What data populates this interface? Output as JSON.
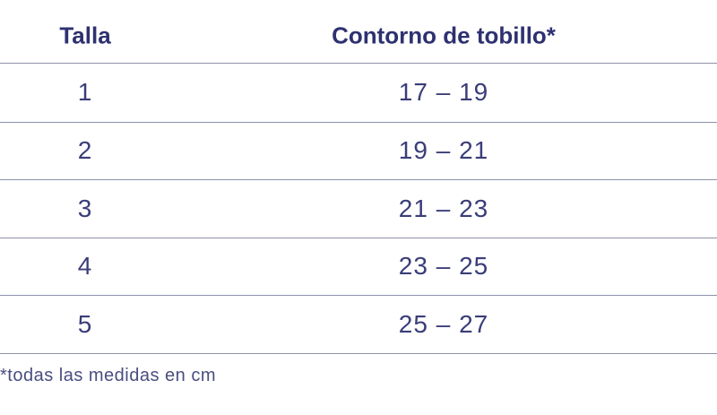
{
  "table": {
    "headers": [
      "Talla",
      "Contorno de tobillo*"
    ],
    "rows": [
      [
        "1",
        "17 – 19"
      ],
      [
        "2",
        "19 – 21"
      ],
      [
        "3",
        "21 – 23"
      ],
      [
        "4",
        "23 – 25"
      ],
      [
        "5",
        "25 – 27"
      ]
    ]
  },
  "footnote": "*todas las medidas en cm"
}
